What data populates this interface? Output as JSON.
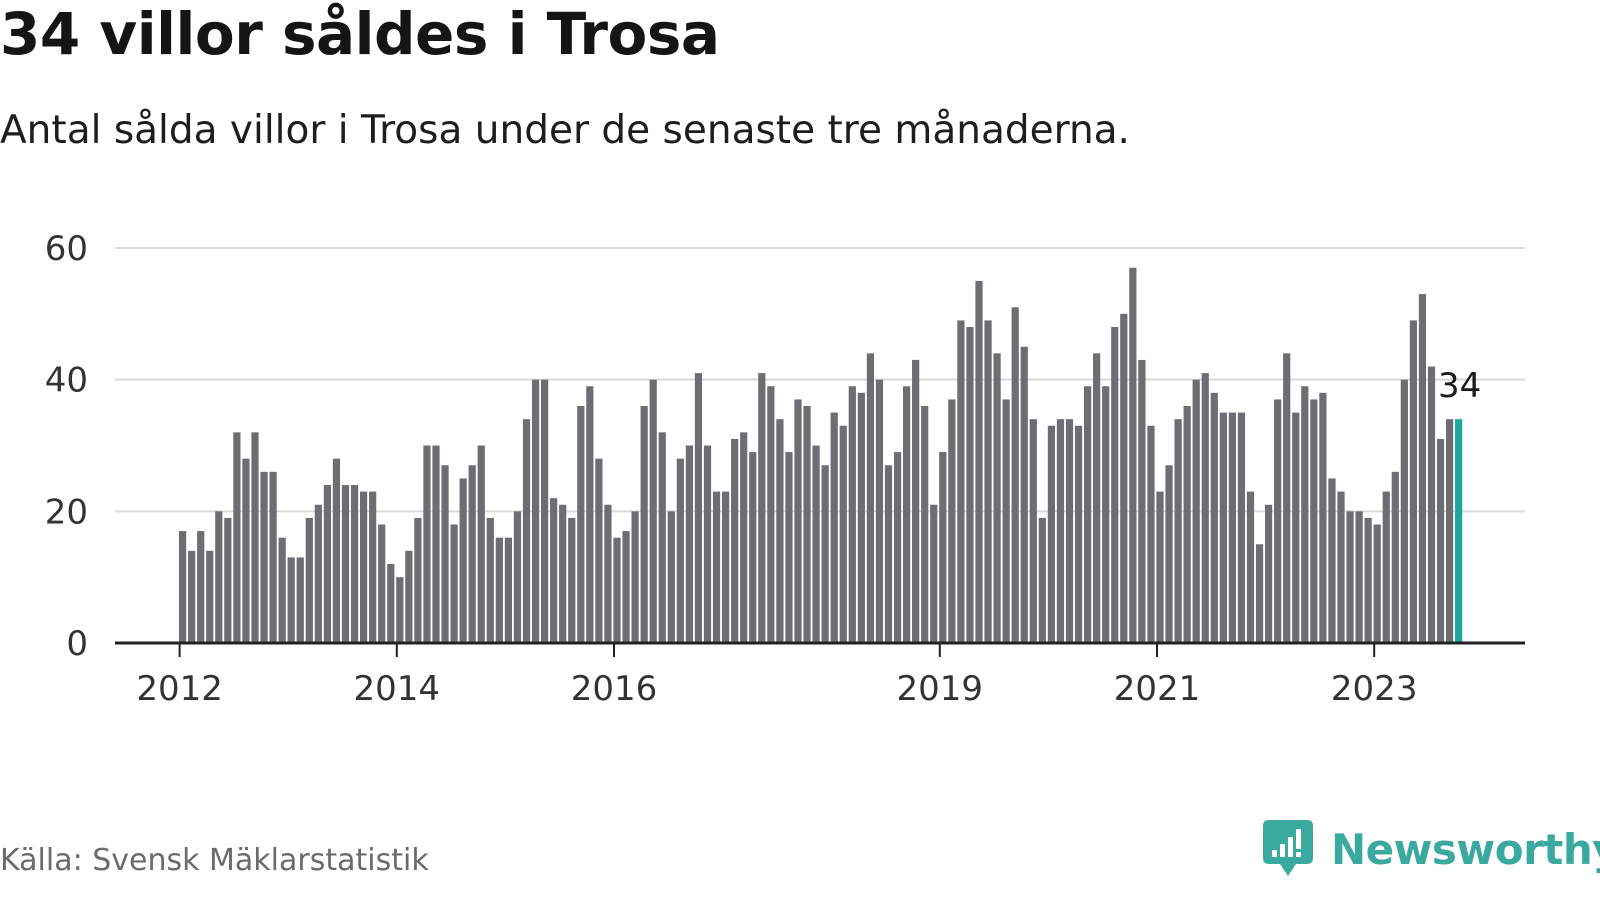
{
  "title": "34 villor såldes i Trosa",
  "subtitle": "Antal sålda villor i Trosa under de senaste tre månaderna.",
  "source": "Källa: Svensk Mäklarstatistik",
  "brand": "Newsworthy",
  "icon": "newsworthy-logo-icon",
  "colors": {
    "bar": "#6e6d73",
    "highlight": "#1da89e",
    "grid": "#d9d9d9",
    "axis": "#222222",
    "brand": "#3aa99f"
  },
  "chart_data": {
    "type": "bar",
    "title": "34 villor såldes i Trosa",
    "xlabel": "",
    "ylabel": "",
    "ylim": [
      0,
      60
    ],
    "yticks": [
      0,
      20,
      40,
      60
    ],
    "xticks": [
      {
        "label": "2012",
        "index": 0
      },
      {
        "label": "2014",
        "index": 24
      },
      {
        "label": "2016",
        "index": 48
      },
      {
        "label": "2019",
        "index": 84
      },
      {
        "label": "2021",
        "index": 108
      },
      {
        "label": "2023",
        "index": 132
      }
    ],
    "x_start": "2012-01",
    "x_end": "2023-12",
    "grid": true,
    "highlight_label": "34",
    "values": [
      17,
      14,
      17,
      14,
      20,
      19,
      32,
      28,
      32,
      26,
      26,
      16,
      13,
      13,
      19,
      21,
      24,
      28,
      24,
      24,
      23,
      23,
      18,
      12,
      10,
      14,
      19,
      30,
      30,
      27,
      18,
      25,
      27,
      30,
      19,
      16,
      16,
      20,
      34,
      40,
      40,
      22,
      21,
      19,
      36,
      39,
      28,
      21,
      16,
      17,
      20,
      36,
      40,
      32,
      20,
      28,
      30,
      41,
      30,
      23,
      23,
      31,
      32,
      29,
      41,
      39,
      34,
      29,
      37,
      36,
      30,
      27,
      35,
      33,
      39,
      38,
      44,
      40,
      27,
      29,
      39,
      43,
      36,
      21,
      29,
      37,
      49,
      48,
      55,
      49,
      44,
      37,
      51,
      45,
      34,
      19,
      33,
      34,
      34,
      33,
      39,
      44,
      39,
      48,
      50,
      57,
      43,
      33,
      23,
      27,
      34,
      36,
      40,
      41,
      38,
      35,
      35,
      35,
      23,
      15,
      21,
      37,
      44,
      35,
      39,
      37,
      38,
      25,
      23,
      20,
      20,
      19,
      18,
      23,
      26,
      40,
      49,
      53,
      42,
      31,
      34,
      34
    ]
  }
}
